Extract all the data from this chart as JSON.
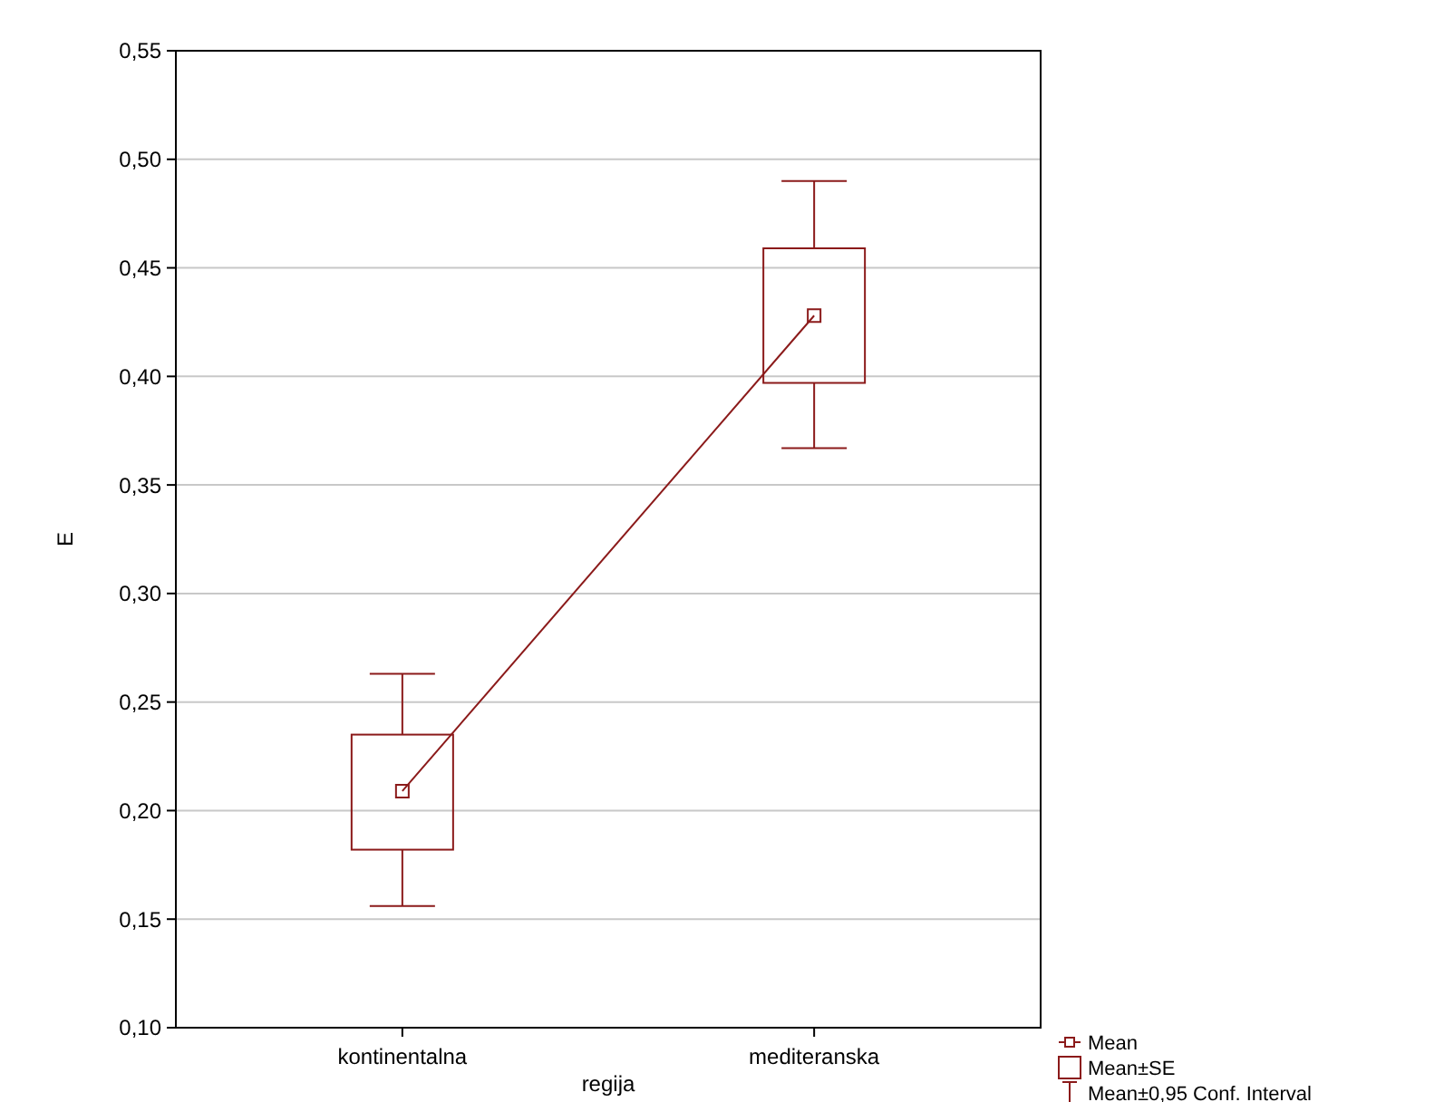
{
  "chart_data": {
    "type": "box",
    "xlabel": "regija",
    "ylabel": "E",
    "categories": [
      "kontinentalna",
      "mediteranska"
    ],
    "ylim": [
      0.1,
      0.55
    ],
    "yticks": [
      {
        "value": 0.1,
        "label": "0,10"
      },
      {
        "value": 0.15,
        "label": "0,15"
      },
      {
        "value": 0.2,
        "label": "0,20"
      },
      {
        "value": 0.25,
        "label": "0,25"
      },
      {
        "value": 0.3,
        "label": "0,30"
      },
      {
        "value": 0.35,
        "label": "0,35"
      },
      {
        "value": 0.4,
        "label": "0,40"
      },
      {
        "value": 0.45,
        "label": "0,45"
      },
      {
        "value": 0.5,
        "label": "0,50"
      },
      {
        "value": 0.55,
        "label": "0,55"
      }
    ],
    "grid": "y",
    "legend": "bottom right",
    "annotations": [
      "Mean±0,95 Conf. Interval"
    ],
    "series": [
      {
        "type": "line",
        "name": "Mean",
        "color": "#8b1a1a",
        "values": [
          0.209,
          0.428
        ]
      },
      {
        "name": "Mean±SE",
        "color": "#8b1a1a",
        "boxes": [
          {
            "low": 0.156,
            "q1": 0.182,
            "median": 0.209,
            "q3": 0.235,
            "high": 0.263
          },
          {
            "low": 0.367,
            "q1": 0.397,
            "median": 0.428,
            "q3": 0.459,
            "high": 0.49
          }
        ]
      }
    ]
  }
}
